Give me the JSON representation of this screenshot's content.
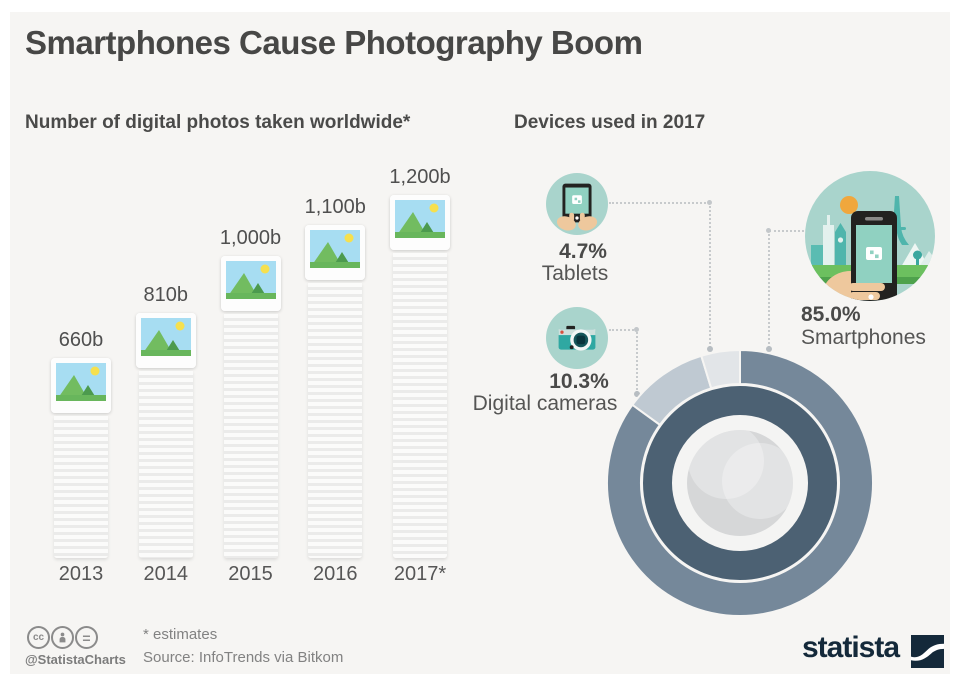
{
  "title": "Smartphones Cause Photography Boom",
  "sections": {
    "left": {
      "heading": "Number of digital photos taken worldwide*"
    },
    "right": {
      "heading": "Devices used in 2017"
    }
  },
  "chart_data": [
    {
      "type": "bar",
      "title": "Number of digital photos taken worldwide*",
      "categories": [
        "2013",
        "2014",
        "2015",
        "2016",
        "2017*"
      ],
      "values": [
        660,
        810,
        1000,
        1100,
        1200
      ],
      "value_labels": [
        "660b",
        "810b",
        "1,000b",
        "1,100b",
        "1,200b"
      ],
      "unit": "billion photos",
      "ylim": [
        0,
        1200
      ],
      "grid": false,
      "note": "2017 value is an estimate"
    },
    {
      "type": "pie",
      "title": "Devices used in 2017",
      "categories": [
        "Smartphones",
        "Digital cameras",
        "Tablets"
      ],
      "values": [
        85.0,
        10.3,
        4.7
      ],
      "value_labels": [
        "85.0%",
        "10.3%",
        "4.7%"
      ],
      "colors": [
        "#75889a",
        "#bfc9d2",
        "#e2e5e8"
      ],
      "legend_position": "callout-labels",
      "style": "donut styled as camera lens, starts at 12 o'clock clockwise"
    }
  ],
  "devices": {
    "tablets": {
      "pct": "4.7%",
      "label": "Tablets"
    },
    "cameras": {
      "pct": "10.3%",
      "label": "Digital cameras"
    },
    "smartphones": {
      "pct": "85.0%",
      "label": "Smartphones"
    }
  },
  "icons": {
    "tablet": "tablet-in-hands-icon",
    "camera": "digital-camera-icon",
    "smartphone": "hand-holding-smartphone-landmarks-illustration",
    "license": [
      "cc",
      "attribution-person",
      "equals-no-derivatives"
    ]
  },
  "footer": {
    "handle": "@StatistaCharts",
    "estimates": "* estimates",
    "source": "Source: InfoTrends via Bitkom",
    "brand": "statista"
  },
  "colors": {
    "background": "#f6f5f3",
    "frame": "#ffffff",
    "text_dark": "#474746",
    "text_mid": "#555555",
    "segment_smartphones": "#75889a",
    "segment_cameras": "#bfc9d2",
    "segment_tablets": "#e2e5e8",
    "lens_ring_dark": "#4c6173",
    "teal_circle": "#a9d4cc",
    "device_screen": "#90d1c1",
    "brand_navy": "#14293a"
  }
}
